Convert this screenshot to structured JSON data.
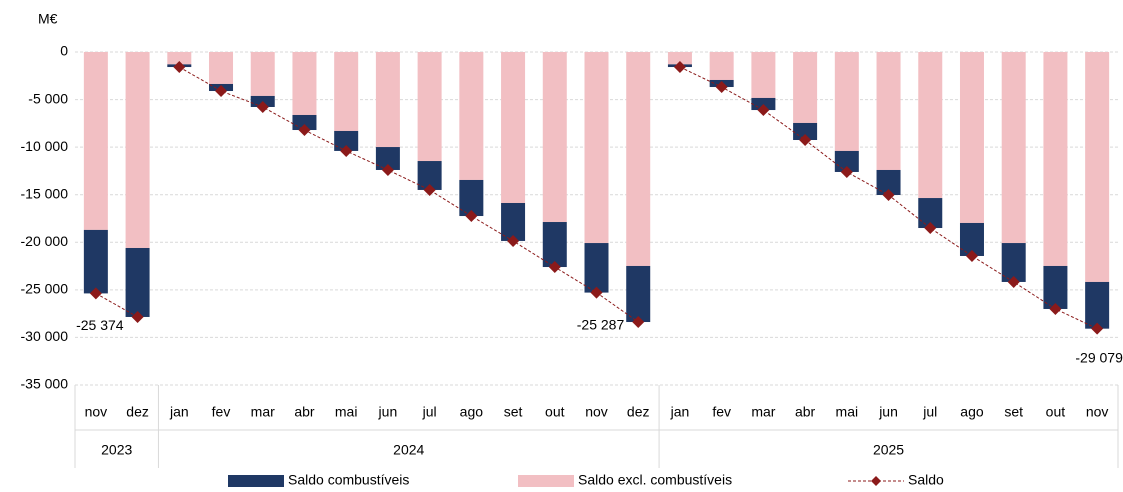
{
  "chart_data": {
    "type": "bar",
    "y_label": "M€",
    "categories": [
      "nov",
      "dez",
      "jan",
      "fev",
      "mar",
      "abr",
      "mai",
      "jun",
      "jul",
      "ago",
      "set",
      "out",
      "nov",
      "dez",
      "jan",
      "fev",
      "mar",
      "abr",
      "mai",
      "jun",
      "jul",
      "ago",
      "set",
      "out",
      "nov"
    ],
    "groups": [
      {
        "label": "2023",
        "count": 2
      },
      {
        "label": "2024",
        "count": 12
      },
      {
        "label": "2025",
        "count": 11
      }
    ],
    "series": [
      {
        "name": "Saldo combustíveis",
        "color": "#1f3864",
        "values": [
          -6674,
          -7250,
          -280,
          -740,
          -1160,
          -1580,
          -2100,
          -2410,
          -3040,
          -3790,
          -3990,
          -4730,
          -5207,
          -5890,
          -280,
          -740,
          -1270,
          -1790,
          -2210,
          -2630,
          -3150,
          -3470,
          -4090,
          -4520,
          -4909
        ]
      },
      {
        "name": "Saldo excl. combustíveis",
        "color": "#f2bfc3",
        "values": [
          -18700,
          -20600,
          -1300,
          -3360,
          -4620,
          -6620,
          -8300,
          -9990,
          -11460,
          -13450,
          -15870,
          -17870,
          -20080,
          -22490,
          -1300,
          -2940,
          -4830,
          -7460,
          -10400,
          -12400,
          -15350,
          -17970,
          -20080,
          -22490,
          -24170
        ]
      },
      {
        "name": "Saldo",
        "type": "line",
        "color": "#8b1a1a",
        "values": [
          -25374,
          -27850,
          -1580,
          -4100,
          -5780,
          -8200,
          -10400,
          -12400,
          -14500,
          -17240,
          -19860,
          -22600,
          -25287,
          -28380,
          -1580,
          -3680,
          -6100,
          -9250,
          -12610,
          -15030,
          -18500,
          -21440,
          -24170,
          -27010,
          -29079
        ],
        "value_labels": [
          "-25 374",
          null,
          null,
          null,
          null,
          null,
          null,
          null,
          null,
          null,
          null,
          null,
          "-25 287",
          null,
          null,
          null,
          null,
          null,
          null,
          null,
          null,
          null,
          null,
          null,
          "-29 079"
        ]
      }
    ],
    "ylim": [
      -35000,
      0
    ],
    "yticks": [
      0,
      {
        "value": -5000,
        "label": "-5 000"
      },
      {
        "value": -10000,
        "label": "-10 000"
      },
      {
        "value": -15000,
        "label": "-15 000"
      },
      {
        "value": -20000,
        "label": "-20 000"
      },
      {
        "value": -25000,
        "label": "-25 000"
      },
      {
        "value": -30000,
        "label": "-30 000"
      },
      {
        "value": -35000,
        "label": "-35 000"
      }
    ],
    "grid": true,
    "legend": "bottom"
  }
}
